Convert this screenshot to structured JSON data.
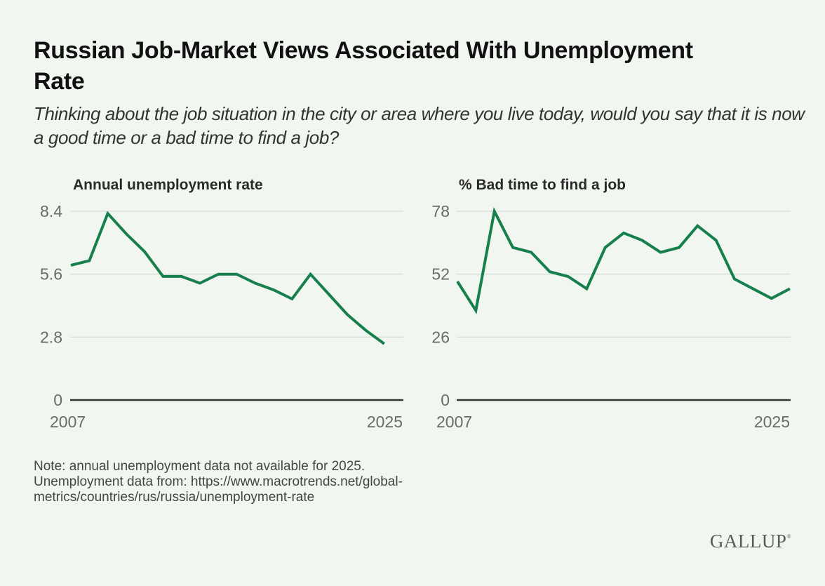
{
  "header": {
    "title": "Russian Job-Market Views Associated With Unemployment Rate",
    "subtitle": "Thinking about the job situation in the city or area where you live today, would you say that it is now a good time or a bad time to find a job?"
  },
  "footer": {
    "note_line1": "Note: annual unemployment data not available for 2025.",
    "note_line2": "Unemployment data from: https://www.macrotrends.net/global-metrics/countries/rus/russia/unemployment-rate",
    "logo": "GALLUP",
    "logo_mark": "®"
  },
  "colors": {
    "line": "#177f4c",
    "background": "#f1f7f0"
  },
  "chart_data": [
    {
      "type": "line",
      "title": "Annual unemployment rate",
      "xlabel": "",
      "ylabel": "",
      "x_range": [
        2007,
        2025
      ],
      "x_tick_labels": [
        "2007",
        "2025"
      ],
      "ylim": [
        0,
        8.4
      ],
      "y_ticks": [
        0,
        2.8,
        5.6,
        8.4
      ],
      "y_tick_labels": [
        "0",
        "2.8",
        "5.6",
        "8.4"
      ],
      "grid": true,
      "series": [
        {
          "name": "Annual unemployment rate",
          "x": [
            2007,
            2008,
            2009,
            2010,
            2011,
            2012,
            2013,
            2014,
            2015,
            2016,
            2017,
            2018,
            2019,
            2020,
            2021,
            2022,
            2023,
            2024
          ],
          "values": [
            6.0,
            6.2,
            8.3,
            7.4,
            6.6,
            5.5,
            5.5,
            5.2,
            5.6,
            5.6,
            5.2,
            4.9,
            4.5,
            5.6,
            4.7,
            3.8,
            3.1,
            2.5
          ]
        }
      ]
    },
    {
      "type": "line",
      "title": "% Bad time to find a job",
      "xlabel": "",
      "ylabel": "",
      "x_range": [
        2007,
        2025
      ],
      "x_tick_labels": [
        "2007",
        "2025"
      ],
      "ylim": [
        0,
        78
      ],
      "y_ticks": [
        0,
        26,
        52,
        78
      ],
      "y_tick_labels": [
        "0",
        "26",
        "52",
        "78"
      ],
      "grid": true,
      "series": [
        {
          "name": "% Bad time to find a job",
          "x": [
            2007,
            2008,
            2009,
            2010,
            2011,
            2012,
            2013,
            2014,
            2015,
            2016,
            2017,
            2018,
            2019,
            2020,
            2021,
            2022,
            2023,
            2024,
            2025
          ],
          "values": [
            49,
            37,
            78,
            63,
            61,
            53,
            51,
            46,
            63,
            69,
            66,
            61,
            63,
            72,
            66,
            50,
            46,
            42,
            46
          ]
        }
      ]
    }
  ]
}
